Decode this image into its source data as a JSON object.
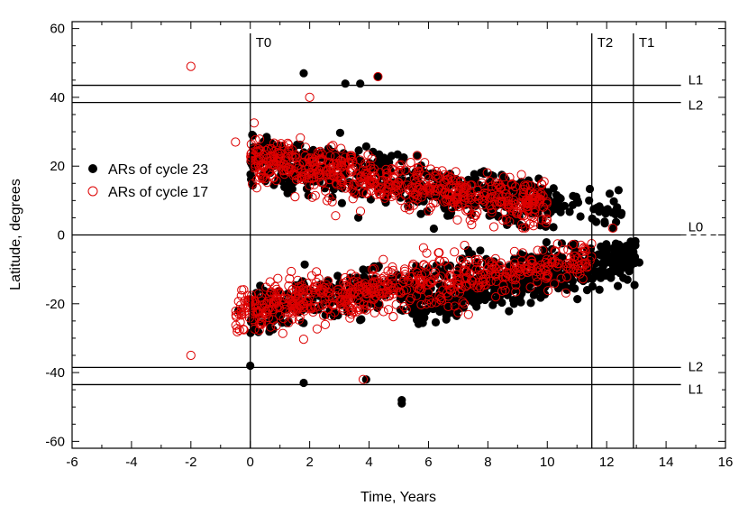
{
  "chart_data": {
    "type": "scatter",
    "xlabel": "Time, Years",
    "ylabel": "Latitude, degrees",
    "xlim": [
      -6,
      16
    ],
    "ylim": [
      -62,
      62
    ],
    "x_ticks": [
      "-6",
      "-4",
      "-2",
      "0",
      "2",
      "4",
      "6",
      "8",
      "10",
      "12",
      "14",
      "16"
    ],
    "y_ticks": [
      "-60",
      "-40",
      "-20",
      "0",
      "20",
      "40",
      "60"
    ],
    "grid": false,
    "legend_position": "left",
    "vertical_lines": [
      {
        "label": "T0",
        "x": 0
      },
      {
        "label": "T2",
        "x": 11.5
      },
      {
        "label": "T1",
        "x": 12.9
      }
    ],
    "horizontal_lines": [
      {
        "label": "L1",
        "y": 43.5,
        "dashed_tail": false
      },
      {
        "label": "L2",
        "y": 38.5,
        "dashed_tail": false
      },
      {
        "label": "L0",
        "y": 0,
        "dashed_tail": true
      },
      {
        "label": "L2",
        "y": -38.5,
        "dashed_tail": false
      },
      {
        "label": "L1",
        "y": -43.5,
        "dashed_tail": false
      }
    ],
    "series": [
      {
        "name": "ARs of cycle 23",
        "marker": "filled-circle",
        "color": "#000000",
        "sample_points": [
          [
            1.8,
            47
          ],
          [
            3.2,
            44
          ],
          [
            3.7,
            44
          ],
          [
            4.3,
            46
          ],
          [
            5.1,
            -48
          ],
          [
            5.1,
            -49
          ],
          [
            0,
            -38
          ],
          [
            -0.4,
            -22
          ],
          [
            0.1,
            25
          ],
          [
            3.9,
            -42
          ],
          [
            1.8,
            -43
          ],
          [
            12.9,
            -5
          ],
          [
            13.1,
            -8
          ],
          [
            12.4,
            13
          ],
          [
            12.1,
            12
          ]
        ],
        "bands": [
          {
            "x_start": 0,
            "x_end": 10.5,
            "lat_start": 22,
            "lat_end": 8,
            "spread": 6.5,
            "count": 520
          },
          {
            "x_start": 0,
            "x_end": 13.0,
            "lat_start": -22,
            "lat_end": -7,
            "spread": 6.5,
            "count": 560
          },
          {
            "x_start": 5.5,
            "x_end": 13.0,
            "lat_start": -22,
            "lat_end": -6,
            "spread": 4.5,
            "count": 260
          },
          {
            "x_start": 8,
            "x_end": 12.5,
            "lat_start": 14,
            "lat_end": 6,
            "spread": 4,
            "count": 90
          }
        ]
      },
      {
        "name": "ARs of cycle 17",
        "marker": "open-circle",
        "color": "#dd0000",
        "sample_points": [
          [
            -2,
            49
          ],
          [
            -2,
            -35
          ],
          [
            4.3,
            46
          ],
          [
            2,
            40
          ],
          [
            3.8,
            -42
          ],
          [
            -0.5,
            27
          ],
          [
            12.2,
            2
          ]
        ],
        "bands": [
          {
            "x_start": 0,
            "x_end": 10.0,
            "lat_start": 22,
            "lat_end": 8,
            "spread": 6,
            "count": 620
          },
          {
            "x_start": -0.5,
            "x_end": 11.5,
            "lat_start": -22,
            "lat_end": -7,
            "spread": 6,
            "count": 620
          }
        ]
      }
    ]
  }
}
